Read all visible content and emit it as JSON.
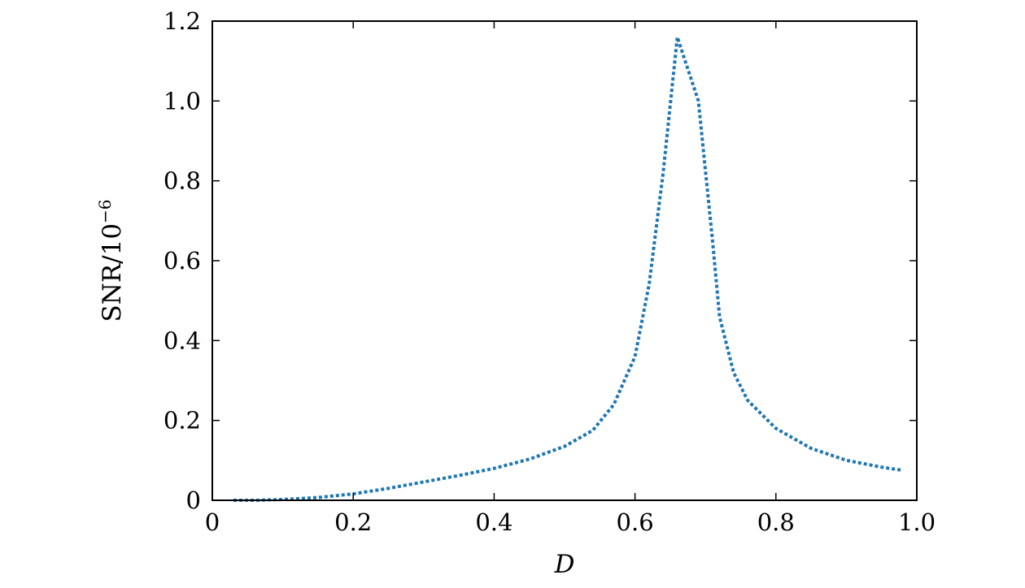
{
  "chart_data": {
    "type": "line",
    "title": "",
    "xlabel": "D",
    "ylabel": "SNR/10",
    "ylabel_exponent": "−6",
    "xlim": [
      0,
      1.0
    ],
    "ylim": [
      0,
      1.2
    ],
    "xticks": [
      {
        "value": 0,
        "label": "0"
      },
      {
        "value": 0.2,
        "label": "0.2"
      },
      {
        "value": 0.4,
        "label": "0.4"
      },
      {
        "value": 0.6,
        "label": "0.6"
      },
      {
        "value": 0.8,
        "label": "0.8"
      },
      {
        "value": 1.0,
        "label": "1.0"
      }
    ],
    "yticks": [
      {
        "value": 0,
        "label": "0"
      },
      {
        "value": 0.2,
        "label": "0.2"
      },
      {
        "value": 0.4,
        "label": "0.4"
      },
      {
        "value": 0.6,
        "label": "0.6"
      },
      {
        "value": 0.8,
        "label": "0.8"
      },
      {
        "value": 1.0,
        "label": "1.0"
      },
      {
        "value": 1.2,
        "label": "1.2"
      }
    ],
    "grid": false,
    "line_color": "#1f77b4",
    "line_style": "dotted",
    "series": [
      {
        "x": [
          0.03,
          0.06,
          0.1,
          0.15,
          0.2,
          0.25,
          0.3,
          0.35,
          0.4,
          0.45,
          0.5,
          0.54,
          0.57,
          0.6,
          0.62,
          0.64,
          0.66,
          0.69,
          0.71,
          0.72,
          0.74,
          0.76,
          0.8,
          0.85,
          0.9,
          0.95,
          0.98
        ],
        "y": [
          0.0,
          0.0,
          0.002,
          0.007,
          0.016,
          0.03,
          0.046,
          0.062,
          0.08,
          0.103,
          0.135,
          0.175,
          0.24,
          0.36,
          0.54,
          0.82,
          1.16,
          1.0,
          0.65,
          0.46,
          0.32,
          0.25,
          0.18,
          0.13,
          0.1,
          0.083,
          0.075
        ]
      }
    ]
  }
}
